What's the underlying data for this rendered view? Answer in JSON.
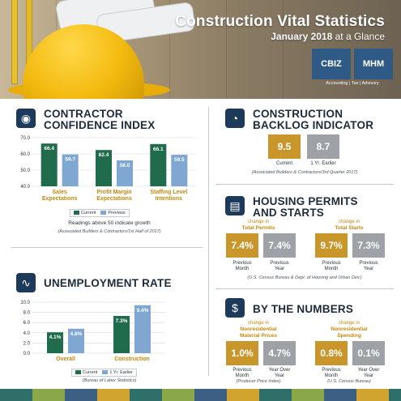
{
  "header": {
    "title": "Construction Vital Statistics",
    "subtitle_bold": "January 2018",
    "subtitle_rest": "at a Glance",
    "logo_left": "CBIZ",
    "logo_right": "MHM",
    "logo_tagline": "Accounting | Tax | Advisory"
  },
  "contractor": {
    "title_line1": "CONTRACTOR",
    "title_line2": "CONFIDENCE INDEX",
    "legend_current": "Current",
    "legend_previous": "Previous",
    "caption": "Readings above 50 indicate growth",
    "source": "(Associated Builders & Contractors/1st Half of 2017)",
    "colors": {
      "current": "#1f6b4b",
      "previous": "#7fa7d1"
    }
  },
  "backlog": {
    "title_line1": "CONSTRUCTION",
    "title_line2": "BACKLOG INDICATOR",
    "current_value": "9.5",
    "earlier_value": "8.7",
    "current_label": "Current",
    "earlier_label": "1 Yr. Earlier",
    "source": "(Associated Builders & Contractors/3rd Quarter 2017)"
  },
  "housing": {
    "title_line1": "HOUSING PERMITS",
    "title_line2": "AND STARTS",
    "permits_prefix": "change in",
    "permits_label": "Total Permits",
    "starts_prefix": "change in",
    "starts_label": "Total Starts",
    "permits_month": "7.4%",
    "permits_year": "7.4%",
    "starts_month": "9.7%",
    "starts_year": "7.3%",
    "label_month_1": "Previous",
    "label_month_2": "Month",
    "label_year_1": "Previous",
    "label_year_2": "Year",
    "source": "(U.S. Census Bureau & Dept. of Housing and Urban Dev.)"
  },
  "unemployment": {
    "title": "UNEMPLOYMENT RATE",
    "legend_current": "Current",
    "legend_previous": "1 Yr. Earlier",
    "source": "(Bureau of Labor Statistics)"
  },
  "numbers": {
    "title": "BY THE NUMBERS",
    "material_prefix": "change in",
    "material_label_1": "Nonresidential",
    "material_label_2": "Material Prices",
    "spending_prefix": "change in",
    "spending_label_1": "Nonresidential",
    "spending_label_2": "Spending",
    "material_month": "1.0%",
    "material_year": "4.7%",
    "spending_month": "0.8%",
    "spending_year": "0.1%",
    "label_month_1": "Previous",
    "label_month_2": "Month",
    "label_year_1": "Year Over",
    "label_year_2": "Year",
    "material_source": "(Producer Price Index)",
    "spending_source": "(U.S. Census Bureau)"
  },
  "chart_data": [
    {
      "type": "bar",
      "title": "CONTRACTOR CONFIDENCE INDEX",
      "categories": [
        "Sales Expectations",
        "Profit Margin Expectations",
        "Staffing Level Intentions"
      ],
      "categories_line1": [
        "Sales",
        "Profit Margin",
        "Staffing Level"
      ],
      "categories_line2": [
        "Expectations",
        "Expectations",
        "Intentions"
      ],
      "series": [
        {
          "name": "Current",
          "values": [
            66.4,
            62.4,
            66.1
          ]
        },
        {
          "name": "Previous",
          "values": [
            59.7,
            56.0,
            59.5
          ]
        }
      ],
      "value_labels": [
        [
          "66.4",
          "62.4",
          "66.1"
        ],
        [
          "59.7",
          "56.0",
          "59.5"
        ]
      ],
      "yticks": [
        "70.0",
        "60.0",
        "50.0",
        "40.0"
      ],
      "ylim": [
        40,
        70
      ],
      "legend": "bottom"
    },
    {
      "type": "bar",
      "title": "UNEMPLOYMENT RATE",
      "categories": [
        "Overall",
        "Construction"
      ],
      "series": [
        {
          "name": "Current",
          "values": [
            4.1,
            7.3
          ]
        },
        {
          "name": "1 Yr. Earlier",
          "values": [
            4.8,
            9.4
          ]
        }
      ],
      "value_labels": [
        [
          "4.1%",
          "7.3%"
        ],
        [
          "4.8%",
          "9.4%"
        ]
      ],
      "yticks": [
        "10.0",
        "8.0",
        "6.0",
        "4.0",
        "2.0",
        "0.0"
      ],
      "ylim": [
        0,
        10
      ],
      "legend": "bottom"
    }
  ]
}
